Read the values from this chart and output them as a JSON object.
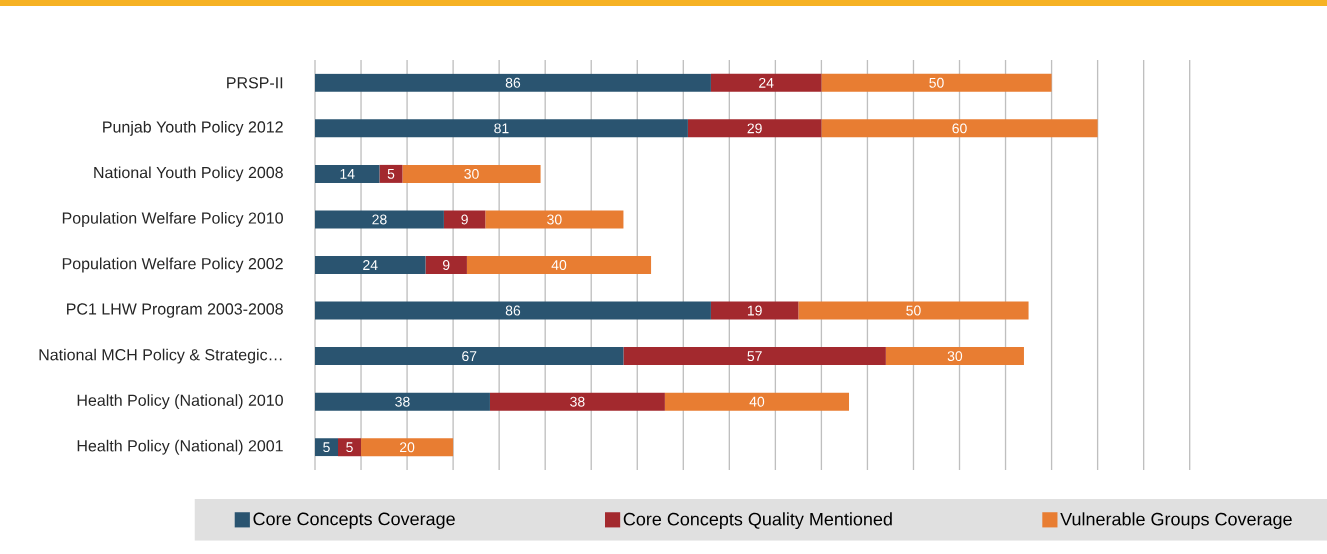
{
  "chart_data": {
    "type": "bar",
    "orientation": "horizontal",
    "stacked": true,
    "data_labels": true,
    "legend": "bottom",
    "grid": "x",
    "tick_labels": "y",
    "categories": [
      "PRSP-II",
      "Punjab Youth Policy 2012",
      "National Youth Policy 2008",
      "Population Welfare Policy 2010",
      "Population Welfare Policy 2002",
      "PC1 LHW Program 2003-2008",
      "National MCH Policy & Strategic…",
      "Health Policy (National) 2010",
      "Health Policy (National) 2001"
    ],
    "series": [
      {
        "name": "Core Concepts Coverage",
        "color": "#2a5470",
        "values": [
          86,
          81,
          14,
          28,
          24,
          86,
          67,
          38,
          5
        ]
      },
      {
        "name": "Core Concepts Quality Mentioned",
        "color": "#a3292e",
        "values": [
          24,
          29,
          5,
          9,
          9,
          19,
          57,
          38,
          5
        ]
      },
      {
        "name": "Vulnerable Groups Coverage",
        "color": "#e87d32",
        "values": [
          50,
          60,
          30,
          30,
          40,
          50,
          30,
          40,
          20
        ]
      }
    ]
  }
}
